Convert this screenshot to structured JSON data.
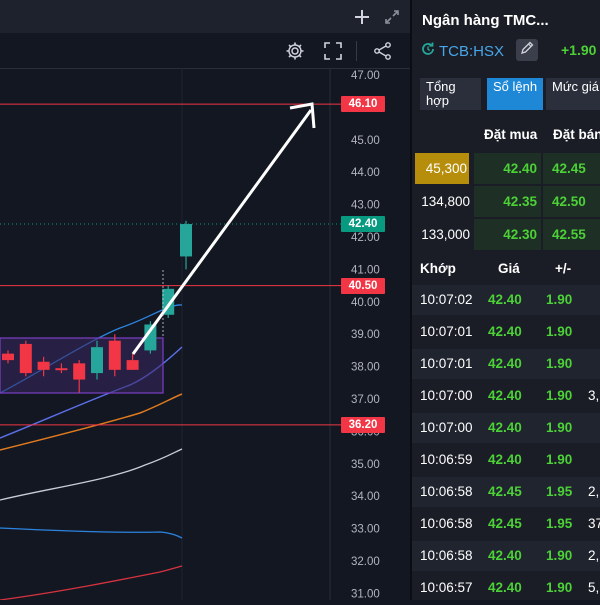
{
  "chart": {
    "price_axis_labels": [
      "47.00",
      "46.00",
      "45.00",
      "44.00",
      "43.00",
      "42.00",
      "41.00",
      "40.00",
      "39.00",
      "38.00",
      "37.00",
      "36.00",
      "35.00",
      "34.00",
      "33.00",
      "32.00",
      "31.00"
    ],
    "price_lines": [
      {
        "value": 46.1,
        "label": "46.10",
        "color": "#f23645"
      },
      {
        "value": 40.5,
        "label": "40.50",
        "color": "#f23645"
      },
      {
        "value": 36.2,
        "label": "36.20",
        "color": "#f23645"
      }
    ],
    "last_price": {
      "value": 42.4,
      "label": "42.40",
      "color": "#089981"
    },
    "candles": [
      {
        "o": 38.4,
        "h": 38.5,
        "l": 38.1,
        "c": 38.2
      },
      {
        "o": 38.7,
        "h": 38.8,
        "l": 37.7,
        "c": 37.8
      },
      {
        "o": 38.15,
        "h": 38.3,
        "l": 37.7,
        "c": 37.9
      },
      {
        "o": 37.95,
        "h": 38.1,
        "l": 37.8,
        "c": 37.9
      },
      {
        "o": 38.1,
        "h": 38.2,
        "l": 37.2,
        "c": 37.6
      },
      {
        "o": 37.8,
        "h": 38.8,
        "l": 37.6,
        "c": 38.6
      },
      {
        "o": 38.8,
        "h": 39.0,
        "l": 37.7,
        "c": 37.9
      },
      {
        "o": 38.2,
        "h": 38.4,
        "l": 37.9,
        "c": 37.9
      },
      {
        "o": 38.5,
        "h": 39.4,
        "l": 38.4,
        "c": 39.3
      },
      {
        "o": 39.6,
        "h": 40.5,
        "l": 39.5,
        "c": 40.4
      },
      {
        "o": 41.4,
        "h": 42.5,
        "l": 41.0,
        "c": 42.4
      }
    ],
    "colors": {
      "up": "#26a69a",
      "down": "#f23645",
      "range_box": "#7b3fc4"
    }
  },
  "icons": {
    "add": "plus-icon",
    "maximize": "expand-arrows-icon",
    "settings": "gear-icon",
    "fullscreen": "fullscreen-icon",
    "share": "share-icon"
  },
  "side": {
    "title": "Ngân hàng TMC...",
    "ticker": "TCB:HSX",
    "change": "+1.90",
    "tabs": [
      {
        "label": "Tổng hợp",
        "active": false
      },
      {
        "label": "Sổ lệnh",
        "active": true
      },
      {
        "label": "Mức giá",
        "active": false
      }
    ],
    "orderbook": {
      "headers": {
        "buy": "Đặt mua",
        "sell": "Đặt bán"
      },
      "rows": [
        {
          "vol": "45,300",
          "buy": "42.40",
          "sell": "42.45",
          "highlight": true
        },
        {
          "vol": "134,800",
          "buy": "42.35",
          "sell": "42.50",
          "highlight": false
        },
        {
          "vol": "133,000",
          "buy": "42.30",
          "sell": "42.55",
          "highlight": false
        }
      ]
    },
    "trades": {
      "headers": {
        "time": "Khớp",
        "price": "Giá",
        "change": "+/-"
      },
      "rows": [
        {
          "time": "10:07:02",
          "price": "42.40",
          "change": "1.90",
          "vol": ""
        },
        {
          "time": "10:07:01",
          "price": "42.40",
          "change": "1.90",
          "vol": ""
        },
        {
          "time": "10:07:01",
          "price": "42.40",
          "change": "1.90",
          "vol": ""
        },
        {
          "time": "10:07:00",
          "price": "42.40",
          "change": "1.90",
          "vol": "3,"
        },
        {
          "time": "10:07:00",
          "price": "42.40",
          "change": "1.90",
          "vol": ""
        },
        {
          "time": "10:06:59",
          "price": "42.40",
          "change": "1.90",
          "vol": ""
        },
        {
          "time": "10:06:58",
          "price": "42.45",
          "change": "1.95",
          "vol": "2,"
        },
        {
          "time": "10:06:58",
          "price": "42.45",
          "change": "1.95",
          "vol": "37,"
        },
        {
          "time": "10:06:58",
          "price": "42.40",
          "change": "1.90",
          "vol": "2,"
        },
        {
          "time": "10:06:57",
          "price": "42.40",
          "change": "1.90",
          "vol": "5,"
        }
      ]
    }
  }
}
